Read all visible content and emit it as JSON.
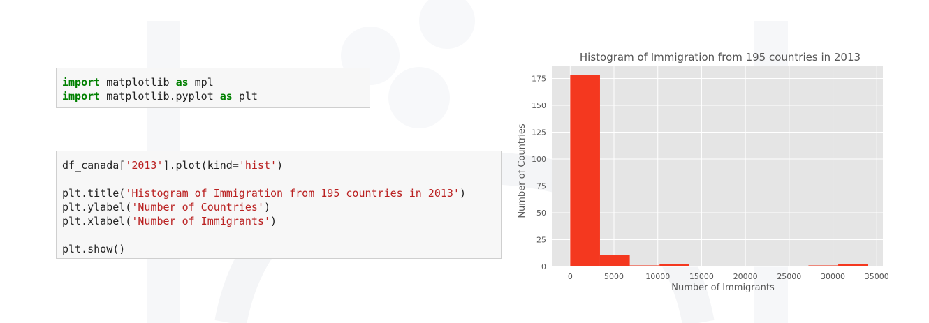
{
  "cell1": {
    "lines": [
      [
        {
          "t": "import",
          "c": "kw"
        },
        {
          "t": " matplotlib ",
          "c": ""
        },
        {
          "t": "as",
          "c": "kw"
        },
        {
          "t": " mpl",
          "c": ""
        }
      ],
      [
        {
          "t": "import",
          "c": "kw"
        },
        {
          "t": " matplotlib.pyplot ",
          "c": ""
        },
        {
          "t": "as",
          "c": "kw"
        },
        {
          "t": " plt",
          "c": ""
        }
      ]
    ]
  },
  "cell2": {
    "lines": [
      [
        {
          "t": "df_canada[",
          "c": ""
        },
        {
          "t": "'2013'",
          "c": "str"
        },
        {
          "t": "].plot(kind=",
          "c": ""
        },
        {
          "t": "'hist'",
          "c": "str"
        },
        {
          "t": ")",
          "c": ""
        }
      ],
      [],
      [
        {
          "t": "plt.title(",
          "c": ""
        },
        {
          "t": "'Histogram of Immigration from 195 countries in 2013'",
          "c": "str"
        },
        {
          "t": ")",
          "c": ""
        }
      ],
      [
        {
          "t": "plt.ylabel(",
          "c": ""
        },
        {
          "t": "'Number of Countries'",
          "c": "str"
        },
        {
          "t": ")",
          "c": ""
        }
      ],
      [
        {
          "t": "plt.xlabel(",
          "c": ""
        },
        {
          "t": "'Number of Immigrants'",
          "c": "str"
        },
        {
          "t": ")",
          "c": ""
        }
      ],
      [],
      [
        {
          "t": "plt.show()",
          "c": ""
        }
      ]
    ]
  },
  "chart_data": {
    "type": "bar",
    "title": "Histogram of Immigration from 195 countries in 2013",
    "xlabel": "Number of Immigrants",
    "ylabel": "Number of Countries",
    "xlim": [
      -2100,
      35700
    ],
    "ylim": [
      0,
      187
    ],
    "xticks": [
      0,
      5000,
      10000,
      15000,
      20000,
      25000,
      30000,
      35000
    ],
    "yticks": [
      0,
      25,
      50,
      75,
      100,
      125,
      150,
      175
    ],
    "bins": [
      {
        "x0": 0,
        "x1": 3400,
        "count": 178
      },
      {
        "x0": 3400,
        "x1": 6800,
        "count": 11
      },
      {
        "x0": 6800,
        "x1": 10200,
        "count": 1
      },
      {
        "x0": 10200,
        "x1": 13600,
        "count": 2
      },
      {
        "x0": 13600,
        "x1": 17000,
        "count": 0
      },
      {
        "x0": 17000,
        "x1": 20400,
        "count": 0
      },
      {
        "x0": 20400,
        "x1": 23800,
        "count": 0
      },
      {
        "x0": 23800,
        "x1": 27200,
        "count": 0
      },
      {
        "x0": 27200,
        "x1": 30600,
        "count": 1
      },
      {
        "x0": 30600,
        "x1": 34000,
        "count": 2
      }
    ],
    "bar_color": "#f4381f",
    "background": "#e5e5e5",
    "grid": true
  }
}
